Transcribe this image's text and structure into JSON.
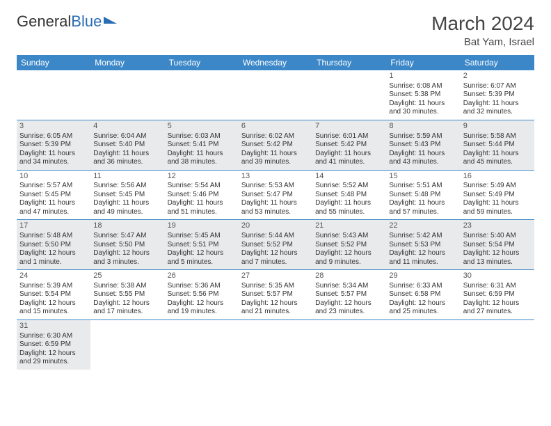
{
  "header": {
    "logo_general": "General",
    "logo_blue": "Blue",
    "title": "March 2024",
    "location": "Bat Yam, Israel"
  },
  "style": {
    "header_bg": "#3b87c8",
    "header_fg": "#ffffff",
    "alt_row_bg": "#e9eaeb",
    "rule_color": "#3b87c8",
    "logo_accent": "#2a6db4"
  },
  "daynames": [
    "Sunday",
    "Monday",
    "Tuesday",
    "Wednesday",
    "Thursday",
    "Friday",
    "Saturday"
  ],
  "weeks": [
    [
      null,
      null,
      null,
      null,
      null,
      {
        "n": "1",
        "sr": "Sunrise: 6:08 AM",
        "ss": "Sunset: 5:38 PM",
        "d1": "Daylight: 11 hours",
        "d2": "and 30 minutes."
      },
      {
        "n": "2",
        "sr": "Sunrise: 6:07 AM",
        "ss": "Sunset: 5:39 PM",
        "d1": "Daylight: 11 hours",
        "d2": "and 32 minutes."
      }
    ],
    [
      {
        "n": "3",
        "sr": "Sunrise: 6:05 AM",
        "ss": "Sunset: 5:39 PM",
        "d1": "Daylight: 11 hours",
        "d2": "and 34 minutes."
      },
      {
        "n": "4",
        "sr": "Sunrise: 6:04 AM",
        "ss": "Sunset: 5:40 PM",
        "d1": "Daylight: 11 hours",
        "d2": "and 36 minutes."
      },
      {
        "n": "5",
        "sr": "Sunrise: 6:03 AM",
        "ss": "Sunset: 5:41 PM",
        "d1": "Daylight: 11 hours",
        "d2": "and 38 minutes."
      },
      {
        "n": "6",
        "sr": "Sunrise: 6:02 AM",
        "ss": "Sunset: 5:42 PM",
        "d1": "Daylight: 11 hours",
        "d2": "and 39 minutes."
      },
      {
        "n": "7",
        "sr": "Sunrise: 6:01 AM",
        "ss": "Sunset: 5:42 PM",
        "d1": "Daylight: 11 hours",
        "d2": "and 41 minutes."
      },
      {
        "n": "8",
        "sr": "Sunrise: 5:59 AM",
        "ss": "Sunset: 5:43 PM",
        "d1": "Daylight: 11 hours",
        "d2": "and 43 minutes."
      },
      {
        "n": "9",
        "sr": "Sunrise: 5:58 AM",
        "ss": "Sunset: 5:44 PM",
        "d1": "Daylight: 11 hours",
        "d2": "and 45 minutes."
      }
    ],
    [
      {
        "n": "10",
        "sr": "Sunrise: 5:57 AM",
        "ss": "Sunset: 5:45 PM",
        "d1": "Daylight: 11 hours",
        "d2": "and 47 minutes."
      },
      {
        "n": "11",
        "sr": "Sunrise: 5:56 AM",
        "ss": "Sunset: 5:45 PM",
        "d1": "Daylight: 11 hours",
        "d2": "and 49 minutes."
      },
      {
        "n": "12",
        "sr": "Sunrise: 5:54 AM",
        "ss": "Sunset: 5:46 PM",
        "d1": "Daylight: 11 hours",
        "d2": "and 51 minutes."
      },
      {
        "n": "13",
        "sr": "Sunrise: 5:53 AM",
        "ss": "Sunset: 5:47 PM",
        "d1": "Daylight: 11 hours",
        "d2": "and 53 minutes."
      },
      {
        "n": "14",
        "sr": "Sunrise: 5:52 AM",
        "ss": "Sunset: 5:48 PM",
        "d1": "Daylight: 11 hours",
        "d2": "and 55 minutes."
      },
      {
        "n": "15",
        "sr": "Sunrise: 5:51 AM",
        "ss": "Sunset: 5:48 PM",
        "d1": "Daylight: 11 hours",
        "d2": "and 57 minutes."
      },
      {
        "n": "16",
        "sr": "Sunrise: 5:49 AM",
        "ss": "Sunset: 5:49 PM",
        "d1": "Daylight: 11 hours",
        "d2": "and 59 minutes."
      }
    ],
    [
      {
        "n": "17",
        "sr": "Sunrise: 5:48 AM",
        "ss": "Sunset: 5:50 PM",
        "d1": "Daylight: 12 hours",
        "d2": "and 1 minute."
      },
      {
        "n": "18",
        "sr": "Sunrise: 5:47 AM",
        "ss": "Sunset: 5:50 PM",
        "d1": "Daylight: 12 hours",
        "d2": "and 3 minutes."
      },
      {
        "n": "19",
        "sr": "Sunrise: 5:45 AM",
        "ss": "Sunset: 5:51 PM",
        "d1": "Daylight: 12 hours",
        "d2": "and 5 minutes."
      },
      {
        "n": "20",
        "sr": "Sunrise: 5:44 AM",
        "ss": "Sunset: 5:52 PM",
        "d1": "Daylight: 12 hours",
        "d2": "and 7 minutes."
      },
      {
        "n": "21",
        "sr": "Sunrise: 5:43 AM",
        "ss": "Sunset: 5:52 PM",
        "d1": "Daylight: 12 hours",
        "d2": "and 9 minutes."
      },
      {
        "n": "22",
        "sr": "Sunrise: 5:42 AM",
        "ss": "Sunset: 5:53 PM",
        "d1": "Daylight: 12 hours",
        "d2": "and 11 minutes."
      },
      {
        "n": "23",
        "sr": "Sunrise: 5:40 AM",
        "ss": "Sunset: 5:54 PM",
        "d1": "Daylight: 12 hours",
        "d2": "and 13 minutes."
      }
    ],
    [
      {
        "n": "24",
        "sr": "Sunrise: 5:39 AM",
        "ss": "Sunset: 5:54 PM",
        "d1": "Daylight: 12 hours",
        "d2": "and 15 minutes."
      },
      {
        "n": "25",
        "sr": "Sunrise: 5:38 AM",
        "ss": "Sunset: 5:55 PM",
        "d1": "Daylight: 12 hours",
        "d2": "and 17 minutes."
      },
      {
        "n": "26",
        "sr": "Sunrise: 5:36 AM",
        "ss": "Sunset: 5:56 PM",
        "d1": "Daylight: 12 hours",
        "d2": "and 19 minutes."
      },
      {
        "n": "27",
        "sr": "Sunrise: 5:35 AM",
        "ss": "Sunset: 5:57 PM",
        "d1": "Daylight: 12 hours",
        "d2": "and 21 minutes."
      },
      {
        "n": "28",
        "sr": "Sunrise: 5:34 AM",
        "ss": "Sunset: 5:57 PM",
        "d1": "Daylight: 12 hours",
        "d2": "and 23 minutes."
      },
      {
        "n": "29",
        "sr": "Sunrise: 6:33 AM",
        "ss": "Sunset: 6:58 PM",
        "d1": "Daylight: 12 hours",
        "d2": "and 25 minutes."
      },
      {
        "n": "30",
        "sr": "Sunrise: 6:31 AM",
        "ss": "Sunset: 6:59 PM",
        "d1": "Daylight: 12 hours",
        "d2": "and 27 minutes."
      }
    ],
    [
      {
        "n": "31",
        "sr": "Sunrise: 6:30 AM",
        "ss": "Sunset: 6:59 PM",
        "d1": "Daylight: 12 hours",
        "d2": "and 29 minutes."
      },
      null,
      null,
      null,
      null,
      null,
      null
    ]
  ]
}
